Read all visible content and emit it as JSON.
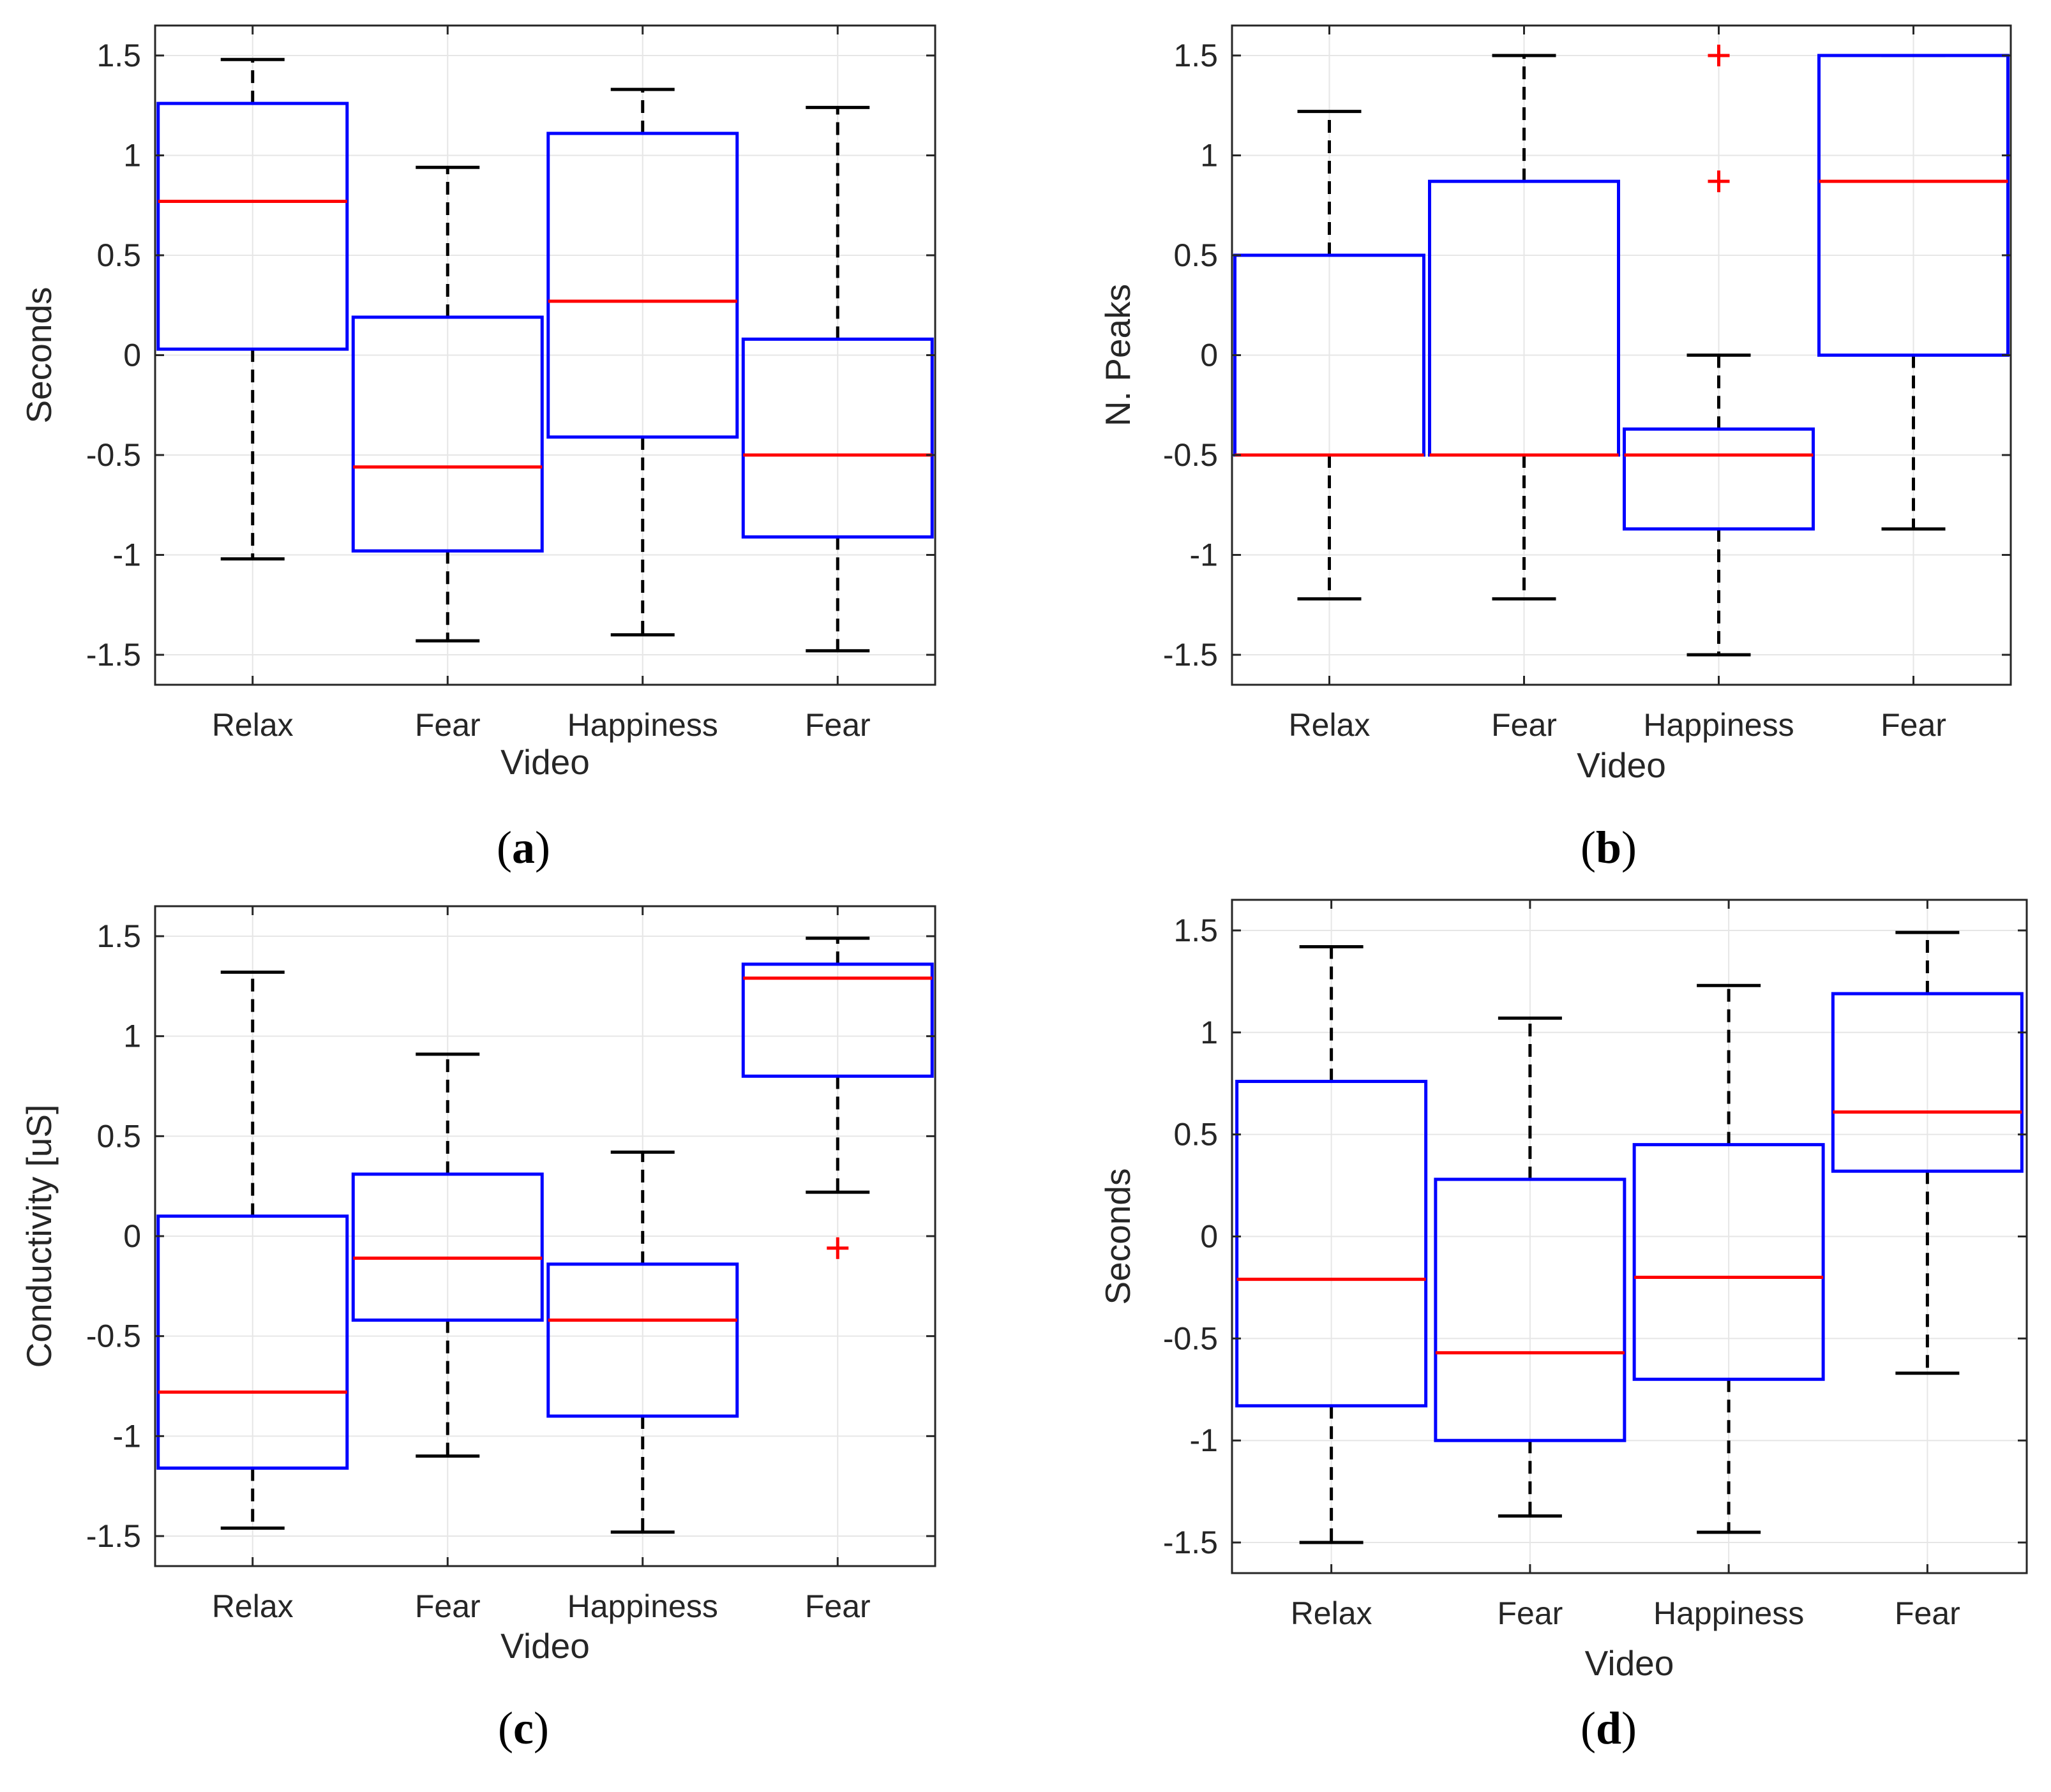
{
  "colors": {
    "box": "#0000ff",
    "median": "#ff0000",
    "whisker": "#000000",
    "outlier": "#ff0000",
    "grid": "#e6e6e6",
    "axis": "#262626"
  },
  "chart_data": [
    {
      "panel_label": "a",
      "type": "box",
      "xlabel": "Video",
      "ylabel": "Seconds",
      "categories": [
        "Relax",
        "Fear",
        "Happiness",
        "Fear"
      ],
      "ylim": [
        -1.65,
        1.65
      ],
      "yticks": [
        -1.5,
        -1,
        -0.5,
        0,
        0.5,
        1,
        1.5
      ],
      "ytick_labels": [
        "-1.5",
        "-1",
        "-0.5",
        "0",
        "0.5",
        "1",
        "1.5"
      ],
      "grid": true,
      "boxes": [
        {
          "whisker_low": -1.02,
          "q1": 0.03,
          "median": 0.77,
          "q3": 1.26,
          "whisker_high": 1.48,
          "outliers": []
        },
        {
          "whisker_low": -1.43,
          "q1": -0.98,
          "median": -0.56,
          "q3": 0.19,
          "whisker_high": 0.94,
          "outliers": []
        },
        {
          "whisker_low": -1.4,
          "q1": -0.41,
          "median": 0.27,
          "q3": 1.11,
          "whisker_high": 1.33,
          "outliers": []
        },
        {
          "whisker_low": -1.48,
          "q1": -0.91,
          "median": -0.5,
          "q3": 0.08,
          "whisker_high": 1.24,
          "outliers": []
        }
      ]
    },
    {
      "panel_label": "b",
      "type": "box",
      "xlabel": "Video",
      "ylabel": "N. Peaks",
      "categories": [
        "Relax",
        "Fear",
        "Happiness",
        "Fear"
      ],
      "ylim": [
        -1.65,
        1.65
      ],
      "yticks": [
        -1.5,
        -1,
        -0.5,
        0,
        0.5,
        1,
        1.5
      ],
      "ytick_labels": [
        "-1.5",
        "-1",
        "-0.5",
        "0",
        "0.5",
        "1",
        "1.5"
      ],
      "grid": true,
      "boxes": [
        {
          "whisker_low": -1.22,
          "q1": -0.5,
          "median": -0.5,
          "q3": 0.5,
          "whisker_high": 1.22,
          "outliers": []
        },
        {
          "whisker_low": -1.22,
          "q1": -0.5,
          "median": -0.5,
          "q3": 0.87,
          "whisker_high": 1.5,
          "outliers": []
        },
        {
          "whisker_low": -1.5,
          "q1": -0.87,
          "median": -0.5,
          "q3": -0.37,
          "whisker_high": 0.0,
          "outliers": [
            0.87,
            1.5
          ]
        },
        {
          "whisker_low": -0.87,
          "q1": 0.0,
          "median": 0.87,
          "q3": 1.5,
          "whisker_high": 1.5,
          "outliers": []
        }
      ]
    },
    {
      "panel_label": "c",
      "type": "box",
      "xlabel": "Video",
      "ylabel": "Conductivity [uS]",
      "categories": [
        "Relax",
        "Fear",
        "Happiness",
        "Fear"
      ],
      "ylim": [
        -1.65,
        1.65
      ],
      "yticks": [
        -1.5,
        -1,
        -0.5,
        0,
        0.5,
        1,
        1.5
      ],
      "ytick_labels": [
        "-1.5",
        "-1",
        "-0.5",
        "0",
        "0.5",
        "1",
        "1.5"
      ],
      "grid": true,
      "boxes": [
        {
          "whisker_low": -1.46,
          "q1": -1.16,
          "median": -0.78,
          "q3": 0.1,
          "whisker_high": 1.32,
          "outliers": []
        },
        {
          "whisker_low": -1.1,
          "q1": -0.42,
          "median": -0.11,
          "q3": 0.31,
          "whisker_high": 0.91,
          "outliers": []
        },
        {
          "whisker_low": -1.48,
          "q1": -0.9,
          "median": -0.42,
          "q3": -0.14,
          "whisker_high": 0.42,
          "outliers": []
        },
        {
          "whisker_low": 0.22,
          "q1": 0.8,
          "median": 1.29,
          "q3": 1.36,
          "whisker_high": 1.49,
          "outliers": [
            -0.06
          ]
        }
      ]
    },
    {
      "panel_label": "d",
      "type": "box",
      "xlabel": "Video",
      "ylabel": "Seconds",
      "categories": [
        "Relax",
        "Fear",
        "Happiness",
        "Fear"
      ],
      "ylim": [
        -1.65,
        1.65
      ],
      "yticks": [
        -1.5,
        -1,
        -0.5,
        0,
        0.5,
        1,
        1.5
      ],
      "ytick_labels": [
        "-1.5",
        "-1",
        "-0.5",
        "0",
        "0.5",
        "1",
        "1.5"
      ],
      "grid": true,
      "boxes": [
        {
          "whisker_low": -1.5,
          "q1": -0.83,
          "median": -0.21,
          "q3": 0.76,
          "whisker_high": 1.42,
          "outliers": []
        },
        {
          "whisker_low": -1.37,
          "q1": -1.0,
          "median": -0.57,
          "q3": 0.28,
          "whisker_high": 1.07,
          "outliers": []
        },
        {
          "whisker_low": -1.45,
          "q1": -0.7,
          "median": -0.2,
          "q3": 0.45,
          "whisker_high": 1.23,
          "outliers": []
        },
        {
          "whisker_low": -0.67,
          "q1": 0.32,
          "median": 0.61,
          "q3": 1.19,
          "whisker_high": 1.49,
          "outliers": []
        }
      ]
    }
  ]
}
